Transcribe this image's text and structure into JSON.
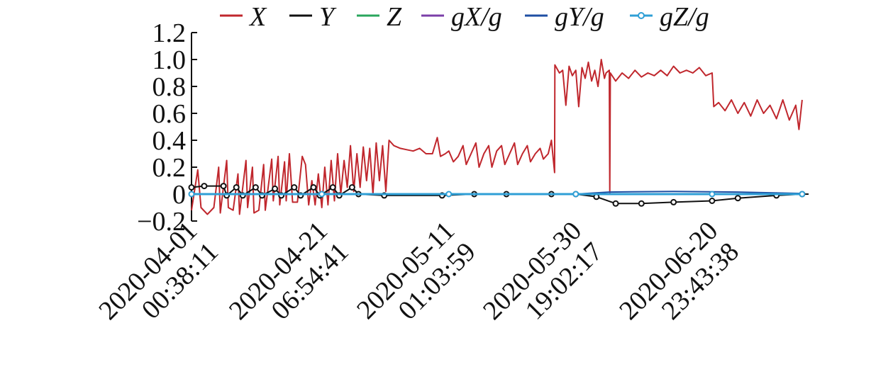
{
  "chart_data": {
    "type": "line",
    "title": "",
    "xlabel": "",
    "ylabel": "",
    "ylim": [
      -0.2,
      1.2
    ],
    "y_ticks": [
      {
        "value": -0.2,
        "label": "−0.2"
      },
      {
        "value": 0,
        "label": "0"
      },
      {
        "value": 0.2,
        "label": "0.2"
      },
      {
        "value": 0.4,
        "label": "0.4"
      },
      {
        "value": 0.6,
        "label": "0.6"
      },
      {
        "value": 0.8,
        "label": "0.8"
      },
      {
        "value": 1.0,
        "label": "1.0"
      },
      {
        "value": 1.2,
        "label": "1.2"
      }
    ],
    "x_range": [
      "2020-04-01 00:38:11",
      "2020-07-06 00:00:00"
    ],
    "x_ticks": [
      {
        "date": "2020-04-01 00:38:11",
        "line1": "2020-04-01",
        "line2": "00:38:11"
      },
      {
        "date": "2020-04-21 06:54:41",
        "line1": "2020-04-21",
        "line2": "06:54:41"
      },
      {
        "date": "2020-05-11 01:03:59",
        "line1": "2020-05-11",
        "line2": "01:03:59"
      },
      {
        "date": "2020-05-30 19:02:17",
        "line1": "2020-05-30",
        "line2": "19:02:17"
      },
      {
        "date": "2020-06-20 23:43:38",
        "line1": "2020-06-20",
        "line2": "23:43:38"
      }
    ],
    "legend_position": "top",
    "grid": false,
    "series": [
      {
        "name": "X",
        "color": "#c0272d",
        "marker": "none",
        "points": [
          [
            "2020-04-01 00:38:11",
            -0.12
          ],
          [
            "2020-04-02 00:00:00",
            0.18
          ],
          [
            "2020-04-02 12:00:00",
            -0.1
          ],
          [
            "2020-04-03 12:00:00",
            -0.15
          ],
          [
            "2020-04-04 12:00:00",
            -0.1
          ],
          [
            "2020-04-05 06:00:00",
            0.2
          ],
          [
            "2020-04-05 12:00:00",
            -0.14
          ],
          [
            "2020-04-06 12:00:00",
            0.25
          ],
          [
            "2020-04-06 18:00:00",
            -0.1
          ],
          [
            "2020-04-07 12:00:00",
            -0.12
          ],
          [
            "2020-04-08 06:00:00",
            0.15
          ],
          [
            "2020-04-08 12:00:00",
            -0.15
          ],
          [
            "2020-04-09 12:00:00",
            0.25
          ],
          [
            "2020-04-09 18:00:00",
            -0.1
          ],
          [
            "2020-04-10 12:00:00",
            0.2
          ],
          [
            "2020-04-10 18:00:00",
            -0.14
          ],
          [
            "2020-04-11 12:00:00",
            -0.12
          ],
          [
            "2020-04-12 06:00:00",
            0.22
          ],
          [
            "2020-04-12 12:00:00",
            -0.12
          ],
          [
            "2020-04-13 12:00:00",
            0.26
          ],
          [
            "2020-04-13 18:00:00",
            -0.05
          ],
          [
            "2020-04-14 12:00:00",
            0.28
          ],
          [
            "2020-04-14 18:00:00",
            -0.08
          ],
          [
            "2020-04-15 12:00:00",
            0.24
          ],
          [
            "2020-04-15 18:00:00",
            -0.05
          ],
          [
            "2020-04-16 06:00:00",
            0.3
          ],
          [
            "2020-04-16 18:00:00",
            -0.06
          ],
          [
            "2020-04-17 12:00:00",
            -0.06
          ],
          [
            "2020-04-18 06:00:00",
            0.28
          ],
          [
            "2020-04-18 18:00:00",
            0.22
          ],
          [
            "2020-04-19 06:00:00",
            -0.08
          ],
          [
            "2020-04-19 18:00:00",
            0.1
          ],
          [
            "2020-04-20 06:00:00",
            -0.08
          ],
          [
            "2020-04-20 18:00:00",
            0.15
          ],
          [
            "2020-04-21 06:54:41",
            -0.1
          ],
          [
            "2020-04-21 18:00:00",
            0.2
          ],
          [
            "2020-04-22 06:00:00",
            -0.08
          ],
          [
            "2020-04-22 18:00:00",
            0.25
          ],
          [
            "2020-04-23 06:00:00",
            -0.05
          ],
          [
            "2020-04-23 18:00:00",
            0.3
          ],
          [
            "2020-04-24 06:00:00",
            0.0
          ],
          [
            "2020-04-24 18:00:00",
            0.25
          ],
          [
            "2020-04-25 06:00:00",
            0.05
          ],
          [
            "2020-04-25 18:00:00",
            0.36
          ],
          [
            "2020-04-26 06:00:00",
            0.02
          ],
          [
            "2020-04-26 18:00:00",
            0.3
          ],
          [
            "2020-04-27 06:00:00",
            0.05
          ],
          [
            "2020-04-27 18:00:00",
            0.35
          ],
          [
            "2020-04-28 06:00:00",
            0.1
          ],
          [
            "2020-04-28 18:00:00",
            0.34
          ],
          [
            "2020-04-29 06:00:00",
            0.0
          ],
          [
            "2020-04-29 18:00:00",
            0.38
          ],
          [
            "2020-04-30 06:00:00",
            0.1
          ],
          [
            "2020-04-30 18:00:00",
            0.36
          ],
          [
            "2020-05-01 06:00:00",
            0.02
          ],
          [
            "2020-05-01 18:00:00",
            0.4
          ],
          [
            "2020-05-02 12:00:00",
            0.36
          ],
          [
            "2020-05-03 12:00:00",
            0.34
          ],
          [
            "2020-05-04 12:00:00",
            0.33
          ],
          [
            "2020-05-05 12:00:00",
            0.32
          ],
          [
            "2020-05-06 12:00:00",
            0.34
          ],
          [
            "2020-05-07 12:00:00",
            0.3
          ],
          [
            "2020-05-08 12:00:00",
            0.3
          ],
          [
            "2020-05-09 06:00:00",
            0.42
          ],
          [
            "2020-05-09 18:00:00",
            0.28
          ],
          [
            "2020-05-10 12:00:00",
            0.3
          ],
          [
            "2020-05-11 01:03:59",
            0.32
          ],
          [
            "2020-05-11 18:00:00",
            0.24
          ],
          [
            "2020-05-12 12:00:00",
            0.28
          ],
          [
            "2020-05-13 06:00:00",
            0.36
          ],
          [
            "2020-05-13 18:00:00",
            0.22
          ],
          [
            "2020-05-14 12:00:00",
            0.3
          ],
          [
            "2020-05-15 06:00:00",
            0.38
          ],
          [
            "2020-05-15 18:00:00",
            0.2
          ],
          [
            "2020-05-16 12:00:00",
            0.3
          ],
          [
            "2020-05-17 06:00:00",
            0.36
          ],
          [
            "2020-05-17 18:00:00",
            0.2
          ],
          [
            "2020-05-18 12:00:00",
            0.32
          ],
          [
            "2020-05-19 06:00:00",
            0.36
          ],
          [
            "2020-05-19 18:00:00",
            0.22
          ],
          [
            "2020-05-20 12:00:00",
            0.3
          ],
          [
            "2020-05-21 06:00:00",
            0.38
          ],
          [
            "2020-05-21 18:00:00",
            0.22
          ],
          [
            "2020-05-22 12:00:00",
            0.3
          ],
          [
            "2020-05-23 06:00:00",
            0.36
          ],
          [
            "2020-05-23 18:00:00",
            0.24
          ],
          [
            "2020-05-24 12:00:00",
            0.3
          ],
          [
            "2020-05-25 06:00:00",
            0.34
          ],
          [
            "2020-05-25 18:00:00",
            0.26
          ],
          [
            "2020-05-26 12:00:00",
            0.3
          ],
          [
            "2020-05-27 00:00:00",
            0.4
          ],
          [
            "2020-05-27 12:00:00",
            0.16
          ],
          [
            "2020-05-27 13:00:00",
            0.96
          ],
          [
            "2020-05-28 06:00:00",
            0.9
          ],
          [
            "2020-05-28 18:00:00",
            0.92
          ],
          [
            "2020-05-29 06:00:00",
            0.66
          ],
          [
            "2020-05-29 18:00:00",
            0.95
          ],
          [
            "2020-05-30 06:00:00",
            0.88
          ],
          [
            "2020-05-30 19:02:17",
            0.92
          ],
          [
            "2020-05-31 06:00:00",
            0.65
          ],
          [
            "2020-05-31 18:00:00",
            0.94
          ],
          [
            "2020-06-01 06:00:00",
            0.86
          ],
          [
            "2020-06-01 18:00:00",
            0.98
          ],
          [
            "2020-06-02 06:00:00",
            0.84
          ],
          [
            "2020-06-02 18:00:00",
            0.92
          ],
          [
            "2020-06-03 06:00:00",
            0.8
          ],
          [
            "2020-06-03 18:00:00",
            1.0
          ],
          [
            "2020-06-04 06:00:00",
            0.86
          ],
          [
            "2020-06-04 12:00:00",
            0.9
          ],
          [
            "2020-06-05 00:00:00",
            0.92
          ],
          [
            "2020-06-05 02:00:00",
            0.0
          ],
          [
            "2020-06-05 04:00:00",
            0.9
          ],
          [
            "2020-06-06 00:00:00",
            0.84
          ],
          [
            "2020-06-07 00:00:00",
            0.9
          ],
          [
            "2020-06-08 00:00:00",
            0.86
          ],
          [
            "2020-06-09 00:00:00",
            0.92
          ],
          [
            "2020-06-10 00:00:00",
            0.87
          ],
          [
            "2020-06-11 00:00:00",
            0.9
          ],
          [
            "2020-06-12 00:00:00",
            0.88
          ],
          [
            "2020-06-13 00:00:00",
            0.92
          ],
          [
            "2020-06-14 00:00:00",
            0.88
          ],
          [
            "2020-06-15 00:00:00",
            0.95
          ],
          [
            "2020-06-16 00:00:00",
            0.9
          ],
          [
            "2020-06-17 00:00:00",
            0.92
          ],
          [
            "2020-06-18 00:00:00",
            0.9
          ],
          [
            "2020-06-19 00:00:00",
            0.94
          ],
          [
            "2020-06-20 00:00:00",
            0.88
          ],
          [
            "2020-06-21 00:00:00",
            0.9
          ],
          [
            "2020-06-21 06:00:00",
            0.65
          ],
          [
            "2020-06-22 00:00:00",
            0.68
          ],
          [
            "2020-06-23 00:00:00",
            0.62
          ],
          [
            "2020-06-24 00:00:00",
            0.7
          ],
          [
            "2020-06-25 00:00:00",
            0.6
          ],
          [
            "2020-06-26 00:00:00",
            0.68
          ],
          [
            "2020-06-27 00:00:00",
            0.58
          ],
          [
            "2020-06-28 00:00:00",
            0.7
          ],
          [
            "2020-06-29 00:00:00",
            0.6
          ],
          [
            "2020-06-30 00:00:00",
            0.66
          ],
          [
            "2020-07-01 00:00:00",
            0.56
          ],
          [
            "2020-07-02 00:00:00",
            0.7
          ],
          [
            "2020-07-03 00:00:00",
            0.55
          ],
          [
            "2020-07-04 00:00:00",
            0.66
          ],
          [
            "2020-07-04 12:00:00",
            0.48
          ],
          [
            "2020-07-05 00:00:00",
            0.7
          ]
        ]
      },
      {
        "name": "Y",
        "color": "#111111",
        "marker": "circle",
        "points": [
          [
            "2020-04-01 00:38:11",
            0.05
          ],
          [
            "2020-04-03 00:00:00",
            0.06
          ],
          [
            "2020-04-06 00:00:00",
            0.06
          ],
          [
            "2020-04-06 12:00:00",
            -0.01
          ],
          [
            "2020-04-08 00:00:00",
            0.05
          ],
          [
            "2020-04-09 00:00:00",
            -0.01
          ],
          [
            "2020-04-11 00:00:00",
            0.05
          ],
          [
            "2020-04-12 00:00:00",
            -0.01
          ],
          [
            "2020-04-14 00:00:00",
            0.04
          ],
          [
            "2020-04-15 00:00:00",
            -0.01
          ],
          [
            "2020-04-17 00:00:00",
            0.05
          ],
          [
            "2020-04-18 00:00:00",
            -0.01
          ],
          [
            "2020-04-20 00:00:00",
            0.05
          ],
          [
            "2020-04-21 00:00:00",
            -0.01
          ],
          [
            "2020-04-23 00:00:00",
            0.05
          ],
          [
            "2020-04-24 00:00:00",
            -0.01
          ],
          [
            "2020-04-26 00:00:00",
            0.05
          ],
          [
            "2020-04-27 00:00:00",
            0.0
          ],
          [
            "2020-05-01 00:00:00",
            -0.01
          ],
          [
            "2020-05-10 00:00:00",
            -0.01
          ],
          [
            "2020-05-15 00:00:00",
            0.0
          ],
          [
            "2020-05-20 00:00:00",
            0.0
          ],
          [
            "2020-05-27 00:00:00",
            0.0
          ],
          [
            "2020-05-30 19:02:17",
            0.0
          ],
          [
            "2020-06-03 00:00:00",
            -0.02
          ],
          [
            "2020-06-06 00:00:00",
            -0.07
          ],
          [
            "2020-06-10 00:00:00",
            -0.07
          ],
          [
            "2020-06-15 00:00:00",
            -0.06
          ],
          [
            "2020-06-20 23:43:38",
            -0.05
          ],
          [
            "2020-06-25 00:00:00",
            -0.03
          ],
          [
            "2020-07-01 00:00:00",
            -0.01
          ],
          [
            "2020-07-05 00:00:00",
            0.0
          ]
        ]
      },
      {
        "name": "Z",
        "color": "#2aa65c",
        "marker": "none",
        "points": [
          [
            "2020-04-01 00:38:11",
            0.0
          ],
          [
            "2020-07-05 00:00:00",
            0.0
          ]
        ]
      },
      {
        "name": "gX/g",
        "color": "#7b3fa8",
        "marker": "none",
        "points": [
          [
            "2020-04-01 00:38:11",
            0.0
          ],
          [
            "2020-07-05 00:00:00",
            0.0
          ]
        ]
      },
      {
        "name": "gY/g",
        "color": "#1f4fa3",
        "marker": "none",
        "points": [
          [
            "2020-04-01 00:38:11",
            0.0
          ],
          [
            "2020-05-30 19:02:17",
            0.0
          ],
          [
            "2020-06-05 00:00:00",
            0.015
          ],
          [
            "2020-06-15 00:00:00",
            0.02
          ],
          [
            "2020-06-25 00:00:00",
            0.015
          ],
          [
            "2020-07-05 00:00:00",
            0.005
          ]
        ]
      },
      {
        "name": "gZ/g",
        "color": "#2f9fd6",
        "marker": "open-circle",
        "points": [
          [
            "2020-04-01 00:38:11",
            0.0
          ],
          [
            "2020-04-21 06:54:41",
            0.0
          ],
          [
            "2020-05-11 01:03:59",
            0.0
          ],
          [
            "2020-05-30 19:02:17",
            0.0
          ],
          [
            "2020-06-20 23:43:38",
            0.0
          ],
          [
            "2020-07-05 00:00:00",
            0.0
          ]
        ]
      }
    ]
  }
}
